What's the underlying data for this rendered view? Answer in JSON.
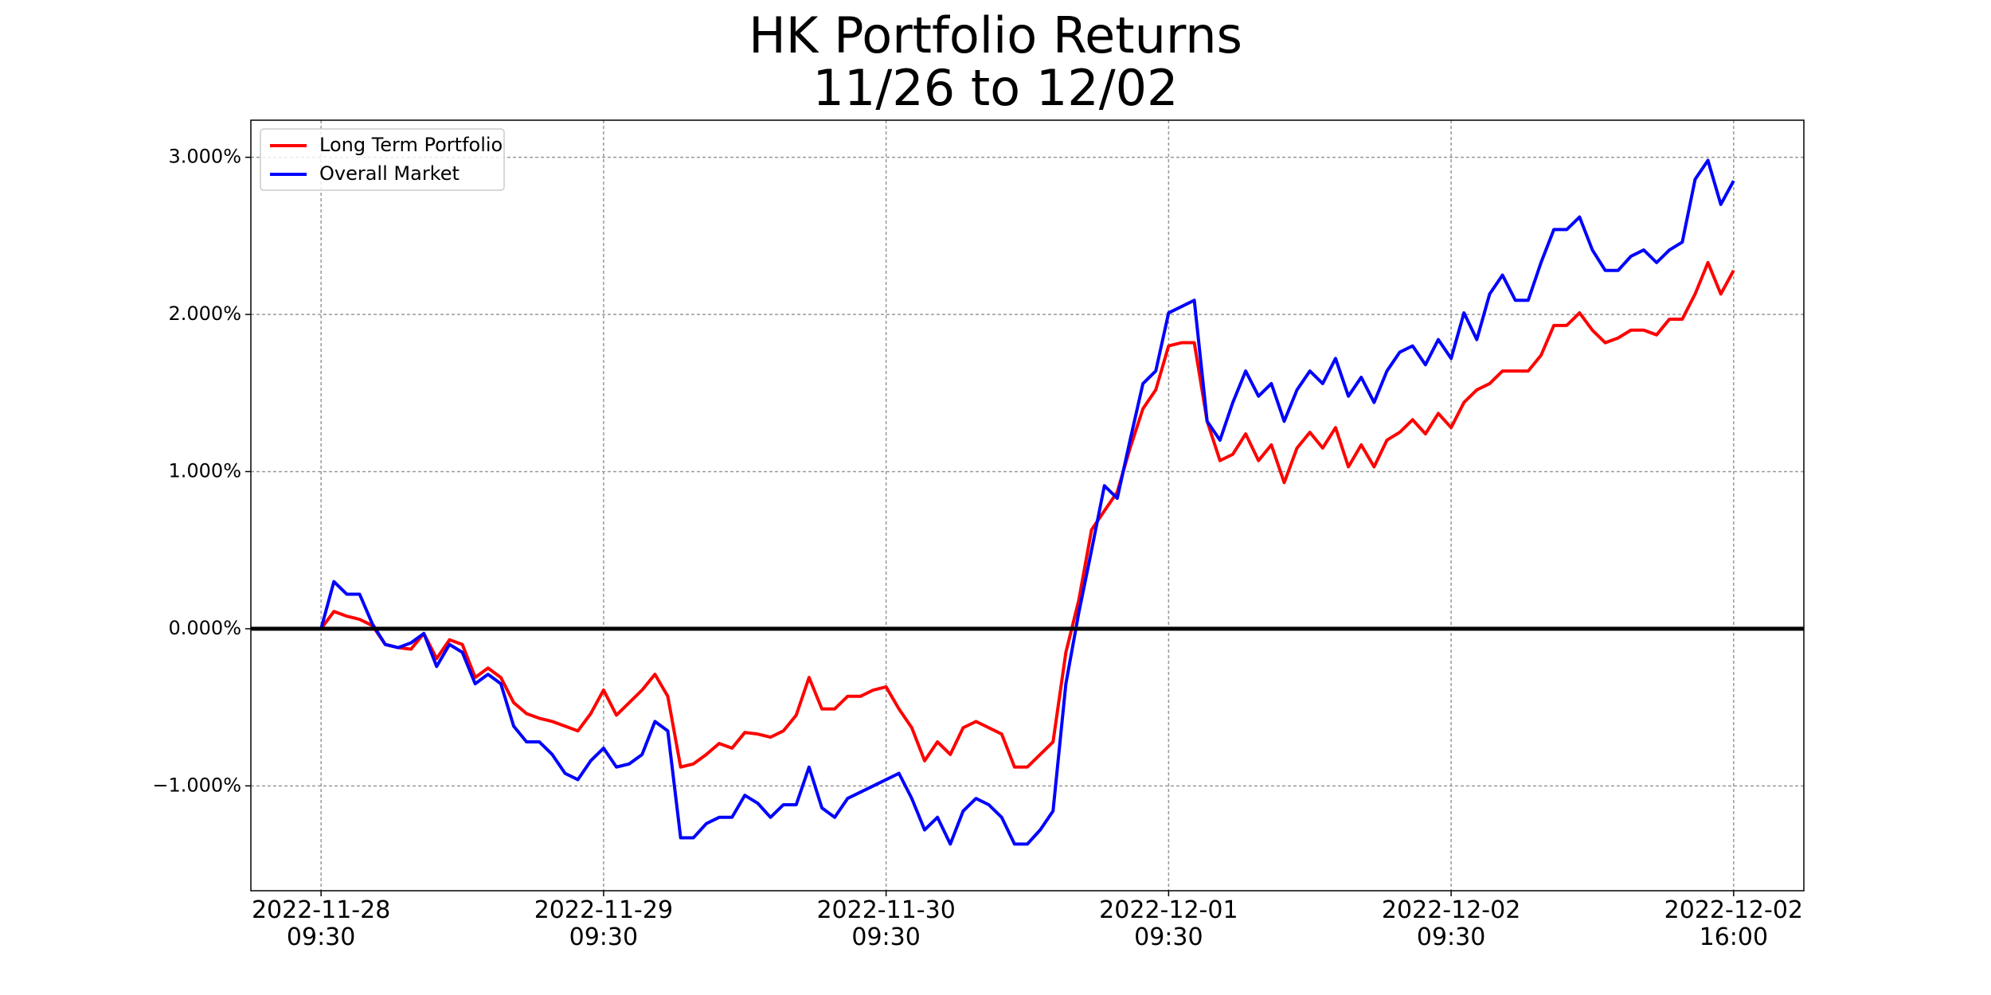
{
  "chart_data": {
    "type": "line",
    "title": "HK Portfolio Returns\n11/26 to 12/02",
    "x": [
      0,
      3,
      6,
      9,
      12,
      15,
      18,
      21,
      24,
      27,
      30,
      33,
      36,
      39,
      42,
      45,
      48,
      51,
      54,
      57,
      60,
      63,
      66,
      69,
      72,
      75,
      78,
      81,
      84,
      87,
      90,
      93,
      96,
      99,
      102,
      105,
      108,
      111,
      114,
      117,
      120,
      123,
      126,
      129,
      132,
      135,
      138,
      141,
      144,
      147,
      150,
      153,
      156,
      159,
      162,
      165,
      168,
      171,
      174,
      177,
      180,
      183,
      186,
      189,
      192,
      195,
      198,
      201,
      204,
      207,
      210,
      213,
      216,
      219,
      222,
      225,
      228,
      231,
      234,
      237,
      240,
      243,
      246,
      249,
      252,
      255,
      258,
      261,
      264,
      267,
      270,
      273,
      276,
      279,
      282,
      285,
      288,
      291,
      294,
      297,
      300,
      303,
      306,
      309,
      312,
      315,
      318,
      321,
      324,
      327,
      330
    ],
    "series": [
      {
        "name": "Long Term Portfolio",
        "color": "#ff0000",
        "values": [
          0,
          0.11,
          0.08,
          0.06,
          0.02,
          -0.1,
          -0.12,
          -0.13,
          -0.03,
          -0.19,
          -0.07,
          -0.1,
          -0.31,
          -0.25,
          -0.31,
          -0.47,
          -0.54,
          -0.57,
          -0.59,
          -0.62,
          -0.65,
          -0.54,
          -0.39,
          -0.55,
          -0.47,
          -0.39,
          -0.29,
          -0.43,
          -0.88,
          -0.86,
          -0.8,
          -0.73,
          -0.76,
          -0.66,
          -0.67,
          -0.69,
          -0.65,
          -0.55,
          -0.31,
          -0.51,
          -0.51,
          -0.43,
          -0.43,
          -0.39,
          -0.37,
          -0.51,
          -0.63,
          -0.84,
          -0.72,
          -0.8,
          -0.63,
          -0.59,
          -0.63,
          -0.67,
          -0.88,
          -0.88,
          -0.8,
          -0.72,
          -0.15,
          0.18,
          0.63,
          0.75,
          0.87,
          1.15,
          1.4,
          1.52,
          1.8,
          1.82,
          1.82,
          1.32,
          1.07,
          1.11,
          1.24,
          1.07,
          1.17,
          0.93,
          1.15,
          1.25,
          1.15,
          1.28,
          1.03,
          1.17,
          1.03,
          1.2,
          1.25,
          1.33,
          1.24,
          1.37,
          1.28,
          1.44,
          1.52,
          1.56,
          1.64,
          1.64,
          1.64,
          1.74,
          1.93,
          1.93,
          2.01,
          1.9,
          1.82,
          1.85,
          1.9,
          1.9,
          1.87,
          1.97,
          1.97,
          2.13,
          2.33,
          2.13,
          2.28
        ]
      },
      {
        "name": "Overall Market",
        "color": "#0000ff",
        "values": [
          0,
          0.3,
          0.22,
          0.22,
          0.03,
          -0.1,
          -0.12,
          -0.09,
          -0.03,
          -0.24,
          -0.1,
          -0.15,
          -0.35,
          -0.29,
          -0.35,
          -0.62,
          -0.72,
          -0.72,
          -0.8,
          -0.92,
          -0.96,
          -0.84,
          -0.76,
          -0.88,
          -0.86,
          -0.8,
          -0.59,
          -0.65,
          -1.33,
          -1.33,
          -1.24,
          -1.2,
          -1.2,
          -1.06,
          -1.11,
          -1.2,
          -1.12,
          -1.12,
          -0.88,
          -1.14,
          -1.2,
          -1.08,
          -1.04,
          -1.0,
          -0.96,
          -0.92,
          -1.08,
          -1.28,
          -1.2,
          -1.37,
          -1.16,
          -1.08,
          -1.12,
          -1.2,
          -1.37,
          -1.37,
          -1.28,
          -1.16,
          -0.35,
          0.1,
          0.5,
          0.91,
          0.83,
          1.2,
          1.56,
          1.64,
          2.01,
          2.05,
          2.09,
          1.32,
          1.2,
          1.44,
          1.64,
          1.48,
          1.56,
          1.32,
          1.52,
          1.64,
          1.56,
          1.72,
          1.48,
          1.6,
          1.44,
          1.64,
          1.76,
          1.8,
          1.68,
          1.84,
          1.72,
          2.01,
          1.84,
          2.13,
          2.25,
          2.09,
          2.09,
          2.33,
          2.54,
          2.54,
          2.62,
          2.41,
          2.28,
          2.28,
          2.37,
          2.41,
          2.33,
          2.41,
          2.46,
          2.86,
          2.98,
          2.7,
          2.85
        ]
      }
    ],
    "xlim": [
      -16.4,
      346.4
    ],
    "xticks": [
      {
        "value": 0,
        "label": "2022-11-28\n09:30"
      },
      {
        "value": 66,
        "label": "2022-11-29\n09:30"
      },
      {
        "value": 132,
        "label": "2022-11-30\n09:30"
      },
      {
        "value": 198,
        "label": "2022-12-01\n09:30"
      },
      {
        "value": 264,
        "label": "2022-12-02\n09:30"
      },
      {
        "value": 330,
        "label": "2022-12-02\n16:00"
      }
    ],
    "ylim": [
      -1.667,
      3.236
    ],
    "yticks": [
      {
        "value": -1,
        "label": "−1.000%"
      },
      {
        "value": 0,
        "label": "0.000%"
      },
      {
        "value": 1,
        "label": "1.000%"
      },
      {
        "value": 2,
        "label": "2.000%"
      },
      {
        "value": 3,
        "label": "3.000%"
      }
    ],
    "hline": 0,
    "grid": true,
    "legend": "upper left"
  }
}
